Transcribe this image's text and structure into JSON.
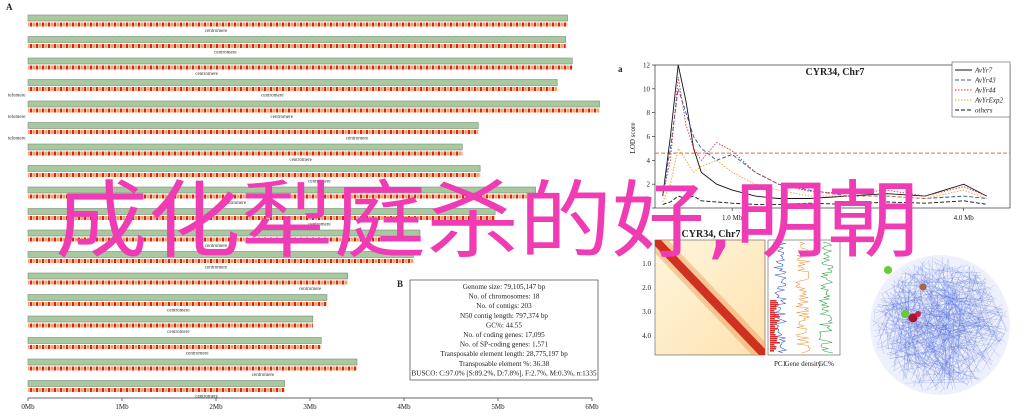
{
  "panel_a": {
    "label": "A",
    "xticks": [
      "0Mb",
      "1Mb",
      "2Mb",
      "3Mb",
      "4Mb",
      "5Mb",
      "6Mb"
    ],
    "chromosome_lengths": [
      5.74,
      5.72,
      5.79,
      5.63,
      6.08,
      4.79,
      4.62,
      4.81,
      5.4,
      4.97,
      4.17,
      4.1,
      3.4,
      3.18,
      3.03,
      3.12,
      3.5,
      2.73
    ],
    "centromeres": [
      2.0,
      2.1,
      1.9,
      2.6,
      2.7,
      3.5,
      2.9,
      3.1,
      2.2,
      3.1,
      2.0,
      2.0,
      3.0,
      1.6,
      1.6,
      1.8,
      2.5,
      1.9
    ],
    "centromere_label": "centromere",
    "telomere_label": "telomere"
  },
  "panel_b": {
    "label": "B",
    "lines": [
      "Genome size: 79,105,147 bp",
      "No. of chromosomes: 18",
      "No. of contigs: 203",
      "N50 contig length: 797,374 bp",
      "GC%: 44.55",
      "No. of coding genes: 17,095",
      "No. of SP-coding genes: 1,571",
      "Transposable element length: 28,775,197 bp",
      "Transposable element %: 36.38",
      "BUSCO: C:97.0% [S:89.2%, D:7.8%], F:2.7%, M:0.3%, n:1335"
    ]
  },
  "chart_data": {
    "type": "line",
    "panel_label": "a",
    "title": "CYR34, Chr7",
    "ylabel": "LOD score",
    "x": [
      0.1,
      0.2,
      0.3,
      0.4,
      0.5,
      0.6,
      0.8,
      1.0,
      1.3,
      1.6,
      2.0,
      2.5,
      3.0,
      3.5,
      4.0,
      4.3
    ],
    "series": [
      {
        "name": "AvYr7",
        "color": "#111111",
        "linestyle": "solid",
        "values": [
          1,
          6,
          12,
          9,
          5,
          3,
          2,
          1.5,
          1,
          0.8,
          0.8,
          1,
          1.2,
          1,
          2,
          1
        ]
      },
      {
        "name": "AvYr43",
        "color": "#3355aa",
        "linestyle": "dashed",
        "values": [
          1,
          5,
          10,
          8,
          6,
          5,
          4,
          4.5,
          3,
          2,
          1.5,
          1,
          1,
          0.8,
          1,
          0.8
        ]
      },
      {
        "name": "AvYr44",
        "color": "#dd3333",
        "linestyle": "dotted",
        "values": [
          1,
          4,
          11,
          7,
          5,
          4,
          5.5,
          4.8,
          3,
          2,
          1.4,
          1.2,
          1.5,
          1,
          1.8,
          1
        ]
      },
      {
        "name": "AvYrExp2",
        "color": "#f0a030",
        "linestyle": "dotted",
        "values": [
          0.5,
          2,
          5,
          4,
          3,
          3.5,
          4,
          3,
          2,
          1.5,
          1,
          1,
          1,
          0.8,
          1.5,
          0.8
        ]
      },
      {
        "name": "others",
        "color": "#111111",
        "linestyle": "dashed",
        "values": [
          0.3,
          0.5,
          1,
          0.8,
          1,
          0.6,
          0.5,
          0.4,
          0.3,
          0.3,
          0.4,
          0.3,
          0.5,
          0.4,
          0.6,
          0.3
        ]
      }
    ],
    "ylim": [
      0,
      12
    ],
    "yticks": [
      0,
      2,
      4,
      6,
      8,
      10,
      12
    ],
    "xlim": [
      0,
      4.6
    ],
    "xticks": [
      {
        "value": 1,
        "label": "1.0 Mb"
      },
      {
        "value": 4,
        "label": "4.0 Mb"
      }
    ],
    "threshold": 4.6,
    "threshold_color": "#e07030",
    "legend": "upper right"
  },
  "heatmap": {
    "title": "CYR34, Chr7",
    "yticks": [
      "1.0",
      "2.0",
      "3.0",
      "4.0"
    ],
    "tracks": [
      "PC1",
      "Gene density",
      "GC%"
    ]
  },
  "overlay_text": "成化犁庭杀的好,明朝"
}
